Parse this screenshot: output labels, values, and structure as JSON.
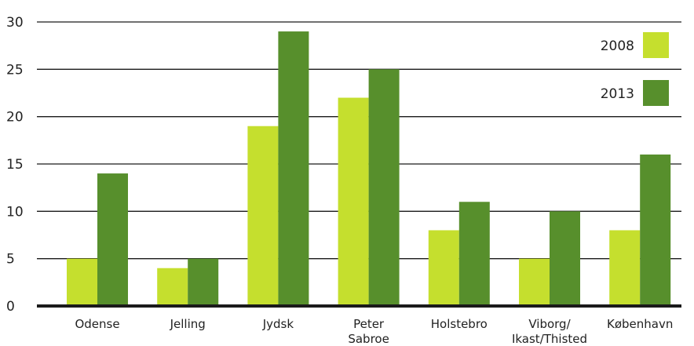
{
  "chart_data": {
    "type": "bar",
    "categories": [
      [
        "Odense"
      ],
      [
        "Jelling"
      ],
      [
        "Jydsk"
      ],
      [
        "Peter",
        "Sabroe"
      ],
      [
        "Holstebro"
      ],
      [
        "Viborg/",
        "Ikast/Thisted"
      ],
      [
        "København"
      ]
    ],
    "series": [
      {
        "name": "2008",
        "color": "#c5df2e",
        "values": [
          5,
          4,
          19,
          22,
          8,
          5,
          8
        ]
      },
      {
        "name": "2013",
        "color": "#578f2c",
        "values": [
          14,
          5,
          29,
          25,
          11,
          10,
          16
        ]
      }
    ],
    "ylim": [
      0,
      30
    ],
    "yticks": [
      0,
      5,
      10,
      15,
      20,
      25,
      30
    ],
    "grid": true,
    "legend_position": "top-right",
    "axis_color": "#1a1a1a",
    "grid_color": "#1a1a1a"
  }
}
